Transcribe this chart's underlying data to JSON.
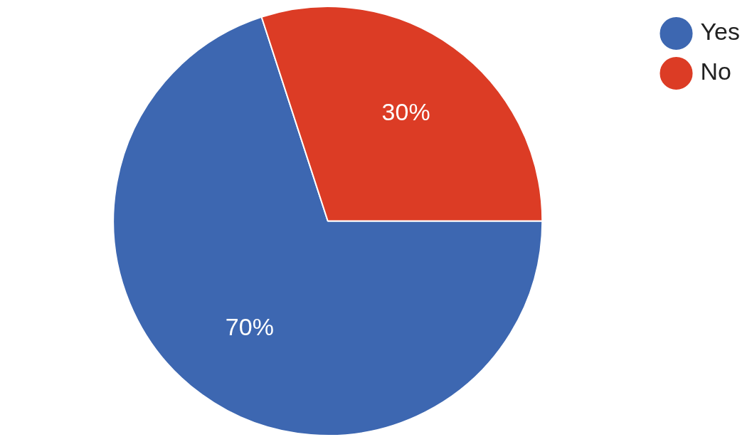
{
  "chart_data": {
    "type": "pie",
    "categories": [
      "Yes",
      "No"
    ],
    "values": [
      70,
      30
    ],
    "colors": [
      "#3d67b1",
      "#dc3c25"
    ],
    "value_labels": [
      "70%",
      "30%"
    ],
    "legend": "top right"
  }
}
